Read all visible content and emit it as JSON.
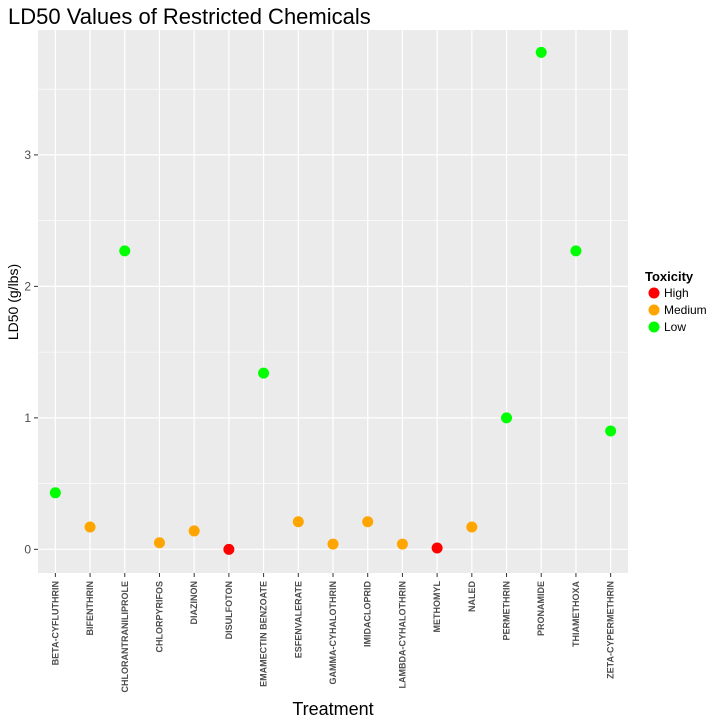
{
  "chart_data": {
    "type": "scatter",
    "title": "LD50 Values of Restricted Chemicals",
    "xlabel": "Treatment",
    "ylabel": "LD50 (g/lbs)",
    "ylim": [
      -0.18,
      3.95
    ],
    "yticks": [
      0,
      1,
      2,
      3
    ],
    "grid": true,
    "legend": {
      "title": "Toxicity",
      "position": "right",
      "entries": [
        {
          "label": "High",
          "color": "#ff0000"
        },
        {
          "label": "Medium",
          "color": "#ffa500"
        },
        {
          "label": "Low",
          "color": "#00ff00"
        }
      ]
    },
    "categories": [
      "BETA-CYFLUTHRIN",
      "BIFENTHRIN",
      "CHLORANTRANILIPROLE",
      "CHLORPYRIFOS",
      "DIAZINON",
      "DISULFOTON",
      "EMAMECTIN BENZOATE",
      "ESFENVALERATE",
      "GAMMA-CYHALOTHRIN",
      "IMIDACLOPRID",
      "LAMBDA-CYHALOTHRIN",
      "METHOMYL",
      "NALED",
      "PERMETHRIN",
      "PRONAMIDE",
      "THIAMETHOXA",
      "ZETA-CYPERMETHRIN"
    ],
    "points": [
      {
        "x": "BETA-CYFLUTHRIN",
        "y": 0.43,
        "toxicity": "Low"
      },
      {
        "x": "BIFENTHRIN",
        "y": 0.17,
        "toxicity": "Medium"
      },
      {
        "x": "CHLORANTRANILIPROLE",
        "y": 2.27,
        "toxicity": "Low"
      },
      {
        "x": "CHLORPYRIFOS",
        "y": 0.05,
        "toxicity": "Medium"
      },
      {
        "x": "DIAZINON",
        "y": 0.14,
        "toxicity": "Medium"
      },
      {
        "x": "DISULFOTON",
        "y": 0.0,
        "toxicity": "High"
      },
      {
        "x": "EMAMECTIN BENZOATE",
        "y": 1.34,
        "toxicity": "Low"
      },
      {
        "x": "ESFENVALERATE",
        "y": 0.21,
        "toxicity": "Medium"
      },
      {
        "x": "GAMMA-CYHALOTHRIN",
        "y": 0.04,
        "toxicity": "Medium"
      },
      {
        "x": "IMIDACLOPRID",
        "y": 0.21,
        "toxicity": "Medium"
      },
      {
        "x": "LAMBDA-CYHALOTHRIN",
        "y": 0.04,
        "toxicity": "Medium"
      },
      {
        "x": "METHOMYL",
        "y": 0.01,
        "toxicity": "High"
      },
      {
        "x": "NALED",
        "y": 0.17,
        "toxicity": "Medium"
      },
      {
        "x": "PERMETHRIN",
        "y": 1.0,
        "toxicity": "Low"
      },
      {
        "x": "PRONAMIDE",
        "y": 3.78,
        "toxicity": "Low"
      },
      {
        "x": "THIAMETHOXA",
        "y": 2.27,
        "toxicity": "Low"
      },
      {
        "x": "ZETA-CYPERMETHRIN",
        "y": 0.9,
        "toxicity": "Low"
      }
    ]
  }
}
